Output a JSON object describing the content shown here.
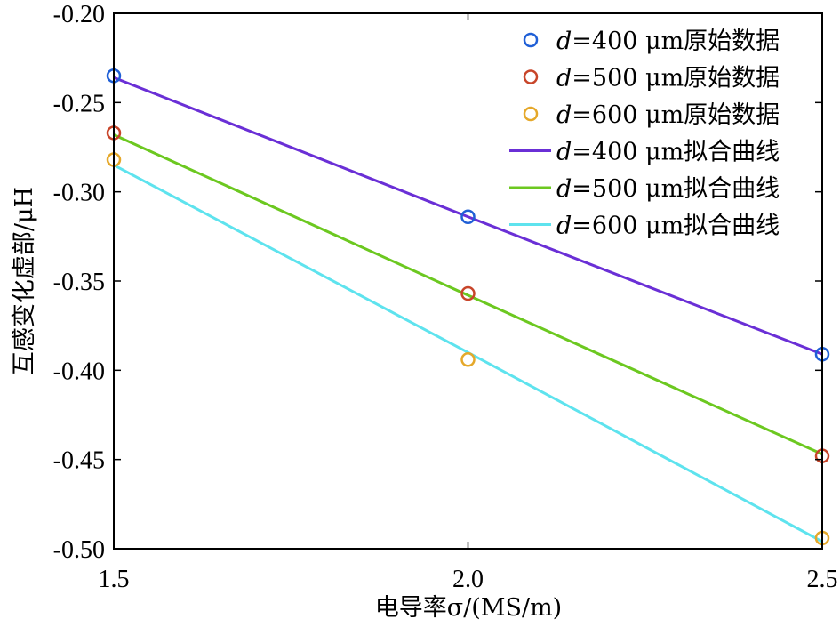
{
  "chart_data": {
    "type": "line",
    "xlabel": "电导率σ/(MS/m)",
    "ylabel": "互感变化虚部/μH",
    "xlim": [
      1.5,
      2.5
    ],
    "ylim": [
      -0.5,
      -0.2
    ],
    "x_ticks": [
      "1.5",
      "2.0",
      "2.5"
    ],
    "y_ticks": [
      "-0.20",
      "-0.25",
      "-0.30",
      "-0.35",
      "-0.40",
      "-0.45",
      "-0.50"
    ],
    "x": [
      1.5,
      2.0,
      2.5
    ],
    "grid": false,
    "legend_position": "top-right",
    "series": [
      {
        "name_var": "d",
        "name_rest": "=400 μm原始数据",
        "kind": "scatter",
        "color": "#1f5fd6",
        "values": [
          -0.235,
          -0.314,
          -0.391
        ]
      },
      {
        "name_var": "d",
        "name_rest": "=500 μm原始数据",
        "kind": "scatter",
        "color": "#c8452a",
        "values": [
          -0.267,
          -0.357,
          -0.448
        ]
      },
      {
        "name_var": "d",
        "name_rest": "=600 μm原始数据",
        "kind": "scatter",
        "color": "#e5a82a",
        "values": [
          -0.282,
          -0.394,
          -0.494
        ]
      },
      {
        "name_var": "d",
        "name_rest": "=400 μm拟合曲线",
        "kind": "line",
        "color": "#6a2fd6",
        "values": [
          -0.236,
          -0.314,
          -0.391
        ]
      },
      {
        "name_var": "d",
        "name_rest": "=500 μm拟合曲线",
        "kind": "line",
        "color": "#6cc820",
        "values": [
          -0.268,
          -0.358,
          -0.447
        ]
      },
      {
        "name_var": "d",
        "name_rest": "=600 μm拟合曲线",
        "kind": "line",
        "color": "#5ee3ee",
        "values": [
          -0.285,
          -0.39,
          -0.496
        ]
      }
    ]
  }
}
